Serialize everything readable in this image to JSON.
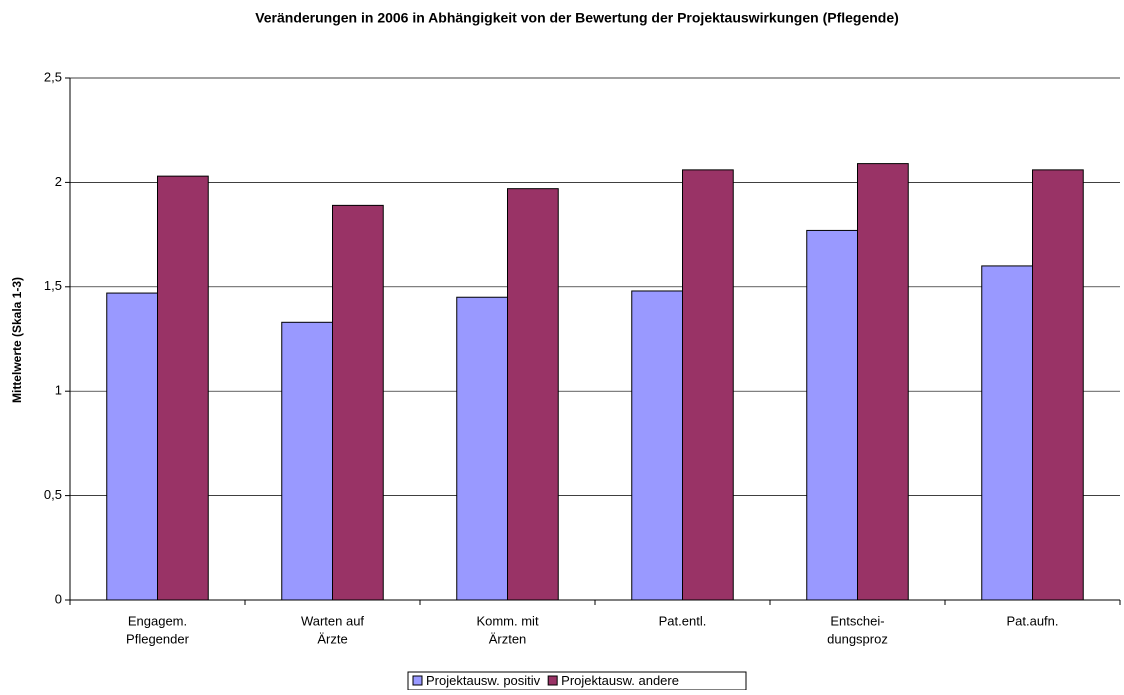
{
  "chart_data": {
    "type": "bar",
    "title": "Veränderungen in 2006 in Abhängigkeit von der Bewertung der Projektauswirkungen (Pflegende)",
    "y_label": "Mittelwerte (Skala 1-3)",
    "categories": [
      [
        "Engagem.",
        "Pflegender"
      ],
      [
        "Warten auf",
        "Ärzte"
      ],
      [
        "Komm. mit",
        "Ärzten"
      ],
      [
        "Pat.entl."
      ],
      [
        "Entschei-",
        "dungsproz"
      ],
      [
        "Pat.aufn."
      ]
    ],
    "series": [
      {
        "name": "Projektausw. positiv",
        "color": "#9999ff",
        "values": [
          1.47,
          1.33,
          1.45,
          1.48,
          1.77,
          1.6
        ]
      },
      {
        "name": "Projektausw. andere",
        "color": "#993366",
        "values": [
          2.03,
          1.89,
          1.97,
          2.06,
          2.09,
          2.06
        ]
      }
    ],
    "ylim": [
      0,
      2.5
    ],
    "yticks": [
      0,
      {
        "value": 0.5,
        "label": "0,5"
      },
      1,
      {
        "value": 1.5,
        "label": "1,5"
      },
      2,
      {
        "value": 2.5,
        "label": "2,5"
      }
    ],
    "grid": true,
    "legend": "bottom"
  }
}
